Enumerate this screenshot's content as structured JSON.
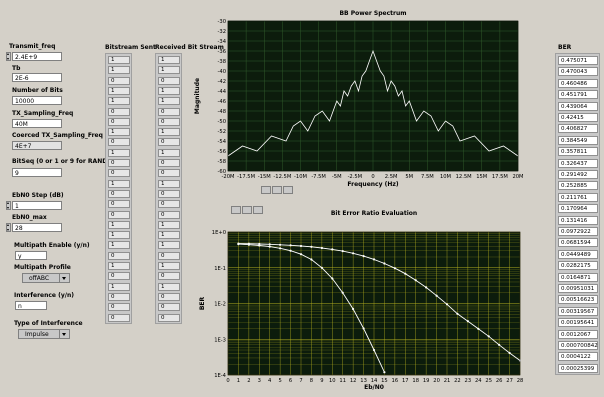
{
  "controls": {
    "transmit_freq": {
      "label": "Transmit_freq",
      "value": "2.4E+9"
    },
    "tb": {
      "label": "Tb",
      "value": "2E-6"
    },
    "num_bits": {
      "label": "Number of Bits",
      "value": "10000"
    },
    "tx_sampling_freq": {
      "label": "TX_Sampling_Freq",
      "value": "40M"
    },
    "coerced_tx_sampling_freq": {
      "label": "Coerced TX_Sampling_Freq",
      "value": "4E+7"
    },
    "bitseq": {
      "label": "BitSeq (0 or 1 or 9 for RAND)",
      "value": "9"
    },
    "ebn0_step": {
      "label": "EbN0 Step (dB)",
      "value": "1"
    },
    "ebn0_max": {
      "label": "EbN0_max",
      "value": "28"
    },
    "multipath_enable": {
      "label": "Multipath Enable (y/n)",
      "value": "y"
    },
    "multipath_profile": {
      "label": "Multipath Profile",
      "value": "offABC"
    },
    "interference": {
      "label": "Interference (y/n)",
      "value": "n"
    },
    "interference_type": {
      "label": "Type of Interference",
      "value": "Impulse"
    }
  },
  "bitstream_sent": {
    "label": "Bitstream Sent",
    "values": [
      "1",
      "1",
      "0",
      "1",
      "1",
      "0",
      "0",
      "1",
      "0",
      "1",
      "0",
      "0",
      "1",
      "0",
      "0",
      "0",
      "1",
      "1",
      "1",
      "0",
      "1",
      "0",
      "1",
      "0",
      "0",
      "0"
    ]
  },
  "received_bit_stream": {
    "label": "Received Bit Stream",
    "values": [
      "1",
      "1",
      "0",
      "1",
      "1",
      "0",
      "0",
      "1",
      "0",
      "1",
      "0",
      "0",
      "1",
      "0",
      "0",
      "0",
      "1",
      "1",
      "1",
      "0",
      "1",
      "0",
      "1",
      "0",
      "0",
      "0"
    ]
  },
  "ber_list": {
    "label": "BER",
    "values": [
      "0.475071",
      "0.470043",
      "0.460486",
      "0.451791",
      "0.439064",
      "0.42415",
      "0.406827",
      "0.384549",
      "0.357811",
      "0.326437",
      "0.291492",
      "0.252885",
      "0.211761",
      "0.170964",
      "0.131416",
      "0.0972922",
      "0.0681594",
      "0.0449489",
      "0.0282175",
      "0.0164871",
      "0.00951031",
      "0.00516623",
      "0.00319567",
      "0.00195641",
      "0.0012067",
      "0.000700842",
      "0.0004122",
      "0.00025399"
    ]
  },
  "colors": {
    "plot_bg": "#0c1c0c",
    "grid": "#2f5a2a",
    "ber_grid": "#b5b020",
    "trace": "#ffffff"
  },
  "chart_data": [
    {
      "type": "line",
      "title": "BB Power Spectrum",
      "xlabel": "Frequency (Hz)",
      "ylabel": "Magnitude",
      "x_ticks": [
        "-20M",
        "-17.5M",
        "-15M",
        "-12.5M",
        "-10M",
        "-7.5M",
        "-5M",
        "-2.5M",
        "0",
        "2.5M",
        "5M",
        "7.5M",
        "10M",
        "12.5M",
        "15M",
        "17.5M",
        "20M"
      ],
      "y_ticks": [
        "-30",
        "-32",
        "-34",
        "-36",
        "-38",
        "-40",
        "-42",
        "-44",
        "-46",
        "-48",
        "-50",
        "-52",
        "-54",
        "-56",
        "-58",
        "-60"
      ],
      "xlim": [
        -20,
        20
      ],
      "ylim": [
        -60,
        -30
      ],
      "grid": true,
      "series": [
        {
          "x": [
            -20,
            -18,
            -16,
            -14,
            -12,
            -11,
            -10,
            -9,
            -8,
            -7,
            -6,
            -5,
            -4.5,
            -4,
            -3.5,
            -3,
            -2.5,
            -2,
            -1.5,
            -1,
            -0.5,
            0,
            0.5,
            1,
            1.5,
            2,
            2.5,
            3,
            3.5,
            4,
            4.5,
            5,
            6,
            7,
            8,
            9,
            10,
            11,
            12,
            14,
            16,
            18,
            20
          ],
          "y": [
            -57,
            -55,
            -56,
            -53,
            -54,
            -51,
            -50,
            -52,
            -49,
            -48,
            -50,
            -46,
            -47,
            -44,
            -45,
            -43,
            -42,
            -44,
            -41,
            -40,
            -38,
            -36,
            -38,
            -40,
            -41,
            -44,
            -42,
            -43,
            -45,
            -44,
            -47,
            -46,
            -50,
            -48,
            -49,
            -52,
            -50,
            -51,
            -54,
            -53,
            -56,
            -55,
            -57
          ]
        }
      ]
    },
    {
      "type": "line",
      "title": "Bit Error Ratio Evaluation",
      "xlabel": "Eb/N0",
      "ylabel": "BER",
      "x_ticks": [
        "0",
        "1",
        "2",
        "3",
        "4",
        "5",
        "6",
        "7",
        "8",
        "9",
        "10",
        "11",
        "12",
        "13",
        "14",
        "15",
        "16",
        "17",
        "18",
        "19",
        "20",
        "21",
        "22",
        "23",
        "24",
        "25",
        "26",
        "27",
        "28"
      ],
      "y_ticks": [
        "1E+0",
        "1E-1",
        "1E-2",
        "1E-3",
        "1E-4"
      ],
      "xlim": [
        0,
        28
      ],
      "ylim": [
        0.0001,
        1
      ],
      "log_y": true,
      "grid": true,
      "series": [
        {
          "x": [
            1,
            2,
            3,
            4,
            5,
            6,
            7,
            8,
            9,
            10,
            11,
            12,
            13,
            14,
            15
          ],
          "y": [
            0.46,
            0.44,
            0.42,
            0.39,
            0.35,
            0.3,
            0.24,
            0.17,
            0.1,
            0.05,
            0.02,
            0.007,
            0.002,
            0.0005,
            0.00012
          ]
        },
        {
          "x": [
            1,
            2,
            3,
            4,
            5,
            6,
            7,
            8,
            9,
            10,
            11,
            12,
            13,
            14,
            15,
            16,
            17,
            18,
            19,
            20,
            21,
            22,
            23,
            24,
            25,
            26,
            27,
            28
          ],
          "y": [
            0.475071,
            0.470043,
            0.460486,
            0.451791,
            0.439064,
            0.42415,
            0.406827,
            0.384549,
            0.357811,
            0.326437,
            0.291492,
            0.252885,
            0.211761,
            0.170964,
            0.131416,
            0.0972922,
            0.0681594,
            0.0449489,
            0.0282175,
            0.0164871,
            0.00951031,
            0.00516623,
            0.00319567,
            0.00195641,
            0.0012067,
            0.000700842,
            0.0004122,
            0.00025399
          ]
        }
      ]
    }
  ]
}
